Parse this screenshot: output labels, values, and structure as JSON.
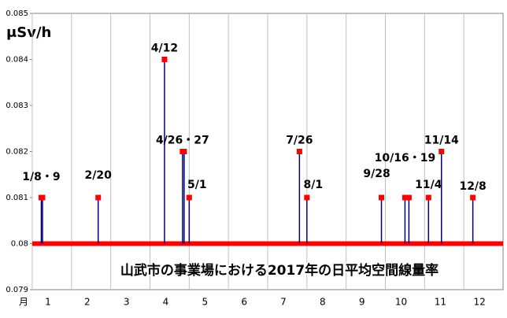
{
  "chart_data": {
    "type": "spike",
    "title": "山武市の事業場における2017年の日平均空間線量率",
    "y_label": "μSv/h",
    "x_label": "月",
    "x": [
      1.23,
      1.26,
      2.68,
      4.37,
      4.83,
      4.87,
      5.0,
      7.81,
      8.0,
      9.9,
      10.5,
      10.6,
      11.1,
      11.43,
      12.23
    ],
    "values": [
      0.081,
      0.081,
      0.081,
      0.084,
      0.082,
      0.082,
      0.081,
      0.082,
      0.081,
      0.081,
      0.081,
      0.081,
      0.081,
      0.082,
      0.081
    ],
    "point_labels": [
      "1/8・9",
      null,
      "2/20",
      "4/12",
      "4/26・27",
      null,
      "5/1",
      "7/26",
      "8/1",
      "9/28",
      "10/16・19",
      null,
      "11/4",
      "11/14",
      "12/8"
    ],
    "baseline": 0.08,
    "baseline_color": "#ff0000",
    "line_color": "#000080",
    "marker_color": "#ff0000",
    "xlim": [
      1,
      13
    ],
    "xticks": [
      1,
      2,
      3,
      4,
      5,
      6,
      7,
      8,
      9,
      10,
      11,
      12
    ],
    "ylim": [
      0.079,
      0.085
    ],
    "yticks": [
      0.079,
      0.08,
      0.081,
      0.082,
      0.083,
      0.084,
      0.085
    ],
    "grid": true
  }
}
